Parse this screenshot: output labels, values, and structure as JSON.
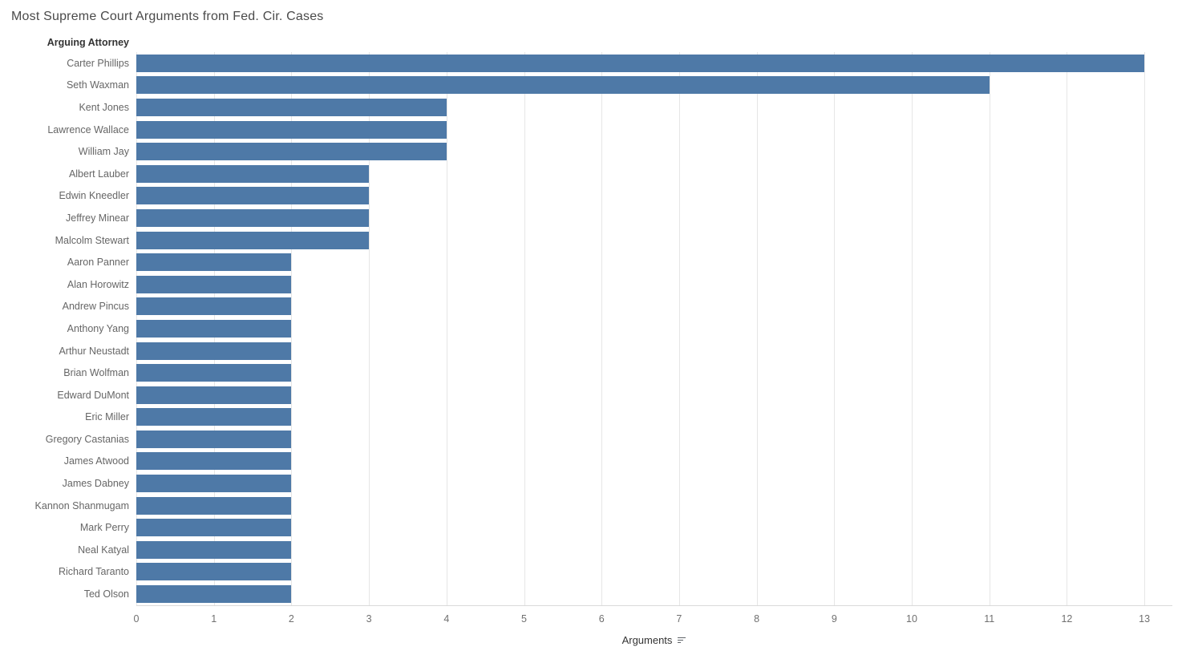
{
  "title": "Most Supreme Court Arguments from Fed. Cir. Cases",
  "row_header": "Arguing Attorney",
  "axis": {
    "label": "Arguments",
    "sort_icon": "sort-descending-icon",
    "ticks": [
      0,
      1,
      2,
      3,
      4,
      5,
      6,
      7,
      8,
      9,
      10,
      11,
      12,
      13
    ]
  },
  "colors": {
    "bar": "#4e79a7",
    "gridline": "#e6e6e6",
    "axis_line": "#d9d9d9",
    "title_text": "#4a4a4a",
    "label_text": "#666666",
    "tick_text": "#707070"
  },
  "chart_data": {
    "type": "bar",
    "orientation": "horizontal",
    "title": "Most Supreme Court Arguments from Fed. Cir. Cases",
    "xlabel": "Arguments",
    "ylabel": "Arguing Attorney",
    "xlim": [
      0,
      13.36
    ],
    "grid": true,
    "legend": "none",
    "categories": [
      "Carter Phillips",
      "Seth Waxman",
      "Kent Jones",
      "Lawrence Wallace",
      "William Jay",
      "Albert Lauber",
      "Edwin Kneedler",
      "Jeffrey Minear",
      "Malcolm Stewart",
      "Aaron Panner",
      "Alan Horowitz",
      "Andrew Pincus",
      "Anthony Yang",
      "Arthur Neustadt",
      "Brian Wolfman",
      "Edward DuMont",
      "Eric Miller",
      "Gregory Castanias",
      "James Atwood",
      "James Dabney",
      "Kannon Shanmugam",
      "Mark Perry",
      "Neal Katyal",
      "Richard Taranto",
      "Ted Olson"
    ],
    "values": [
      13,
      11,
      4,
      4,
      4,
      3,
      3,
      3,
      3,
      2,
      2,
      2,
      2,
      2,
      2,
      2,
      2,
      2,
      2,
      2,
      2,
      2,
      2,
      2,
      2
    ]
  }
}
